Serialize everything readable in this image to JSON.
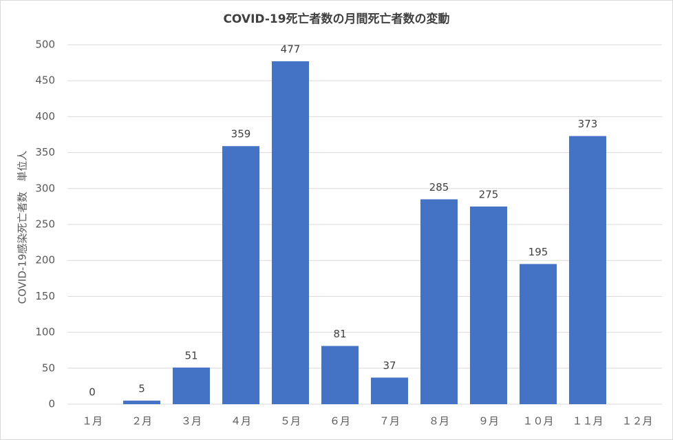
{
  "chart_data": {
    "type": "bar",
    "title": "COVID-19死亡者数の月間死亡者数の変動",
    "y_label": "COVID-19感染死亡者数　単位人",
    "categories": [
      "１月",
      "２月",
      "３月",
      "４月",
      "５月",
      "６月",
      "７月",
      "８月",
      "９月",
      "１０月",
      "１１月",
      "１２月"
    ],
    "values": [
      0,
      5,
      51,
      359,
      477,
      81,
      37,
      285,
      275,
      195,
      373,
      null
    ],
    "color": "#4472c4",
    "ylim": [
      0,
      500
    ],
    "yticks": [
      0,
      50,
      100,
      150,
      200,
      250,
      300,
      350,
      400,
      450,
      500
    ],
    "grid": true
  }
}
